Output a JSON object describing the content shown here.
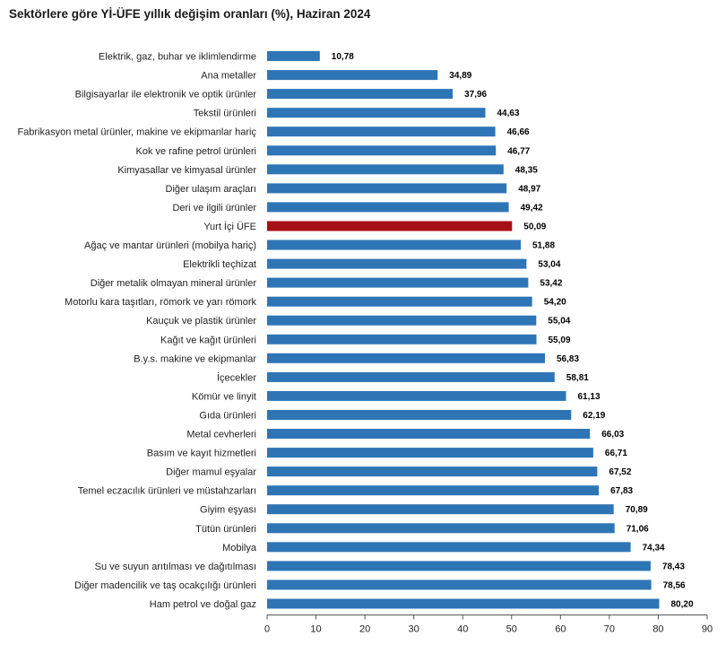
{
  "chart_data": {
    "type": "bar",
    "orientation": "horizontal",
    "title": "Sektörlere göre Yİ-ÜFE yıllık değişim oranları (%), Haziran 2024",
    "xlabel": "",
    "ylabel": "",
    "xlim": [
      0,
      90
    ],
    "ticks": [
      0,
      10,
      20,
      30,
      40,
      50,
      60,
      70,
      80,
      90
    ],
    "grid": false,
    "colors": {
      "default": "#2e75b6",
      "highlight": "#a50f15"
    },
    "highlight": "Yurt İçi ÜFE",
    "categories": [
      "Elektrik, gaz, buhar ve iklimlendirme",
      "Ana metaller",
      "Bilgisayarlar ile elektronik ve optik ürünler",
      "Tekstil ürünleri",
      "Fabrikasyon metal ürünler, makine ve ekipmanlar hariç",
      "Kok ve rafine petrol ürünleri",
      "Kimyasallar ve kimyasal ürünler",
      "Diğer ulaşım araçları",
      "Deri ve ilgili ürünler",
      "Yurt İçi ÜFE",
      "Ağaç ve mantar ürünleri (mobilya hariç)",
      "Elektrikli teçhizat",
      "Diğer metalik olmayan mineral ürünler",
      "Motorlu kara taşıtları, römork ve yarı römork",
      "Kauçuk ve plastik ürünler",
      "Kağıt ve kağıt ürünleri",
      "B.y.s. makine ve ekipmanlar",
      "İçecekler",
      "Kömür ve linyit",
      "Gıda ürünleri",
      "Metal cevherleri",
      "Basım ve kayıt hizmetleri",
      "Diğer mamul eşyalar",
      "Temel eczacılık ürünleri ve müstahzarları",
      "Giyim eşyası",
      "Tütün ürünleri",
      "Mobilya",
      "Su ve suyun arıtılması ve dağıtılması",
      "Diğer madencilik ve taş ocakçılığı ürünleri",
      "Ham petrol ve doğal gaz"
    ],
    "values": [
      10.78,
      34.89,
      37.96,
      44.63,
      46.66,
      46.77,
      48.35,
      48.97,
      49.42,
      50.09,
      51.88,
      53.04,
      53.42,
      54.2,
      55.04,
      55.09,
      56.83,
      58.81,
      61.13,
      62.19,
      66.03,
      66.71,
      67.52,
      67.83,
      70.89,
      71.06,
      74.34,
      78.43,
      78.56,
      80.2
    ],
    "value_labels": [
      "10,78",
      "34,89",
      "37,96",
      "44,63",
      "46,66",
      "46,77",
      "48,35",
      "48,97",
      "49,42",
      "50,09",
      "51,88",
      "53,04",
      "53,42",
      "54,20",
      "55,04",
      "55,09",
      "56,83",
      "58,81",
      "61,13",
      "62,19",
      "66,03",
      "66,71",
      "67,52",
      "67,83",
      "70,89",
      "71,06",
      "74,34",
      "78,43",
      "78,56",
      "80,20"
    ]
  }
}
